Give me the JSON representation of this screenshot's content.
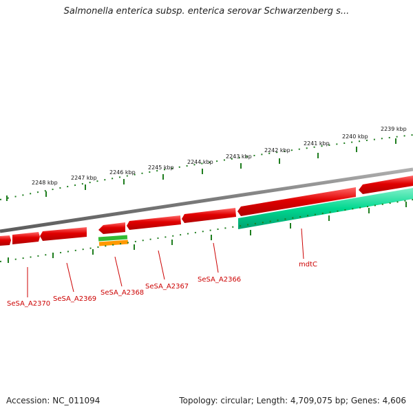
{
  "title": "Salmonella enterica subsp. enterica serovar Schwarzenberg s...",
  "footer": {
    "accession": "Accession: NC_011094",
    "summary": "Topology: circular; Length: 4,709,075 bp; Genes: 4,606"
  },
  "colors": {
    "forward_gene": "#e00000",
    "reverse_gene": "#00d890",
    "tick": "#1e7d1e",
    "backbone": "#8a8a8a",
    "label": "#cc0000",
    "feature_green": "#33bb33",
    "feature_orange": "#ff9900"
  },
  "scale": {
    "unit": "kbp",
    "labels": [
      "2248 kbp",
      "2247 kbp",
      "2246 kbp",
      "2245 kbp",
      "2244 kbp",
      "2243 kbp",
      "2242 kbp",
      "2241 kbp",
      "2240 kbp",
      "2239 kbp"
    ]
  },
  "genes": [
    {
      "label": "SeSA_A2370",
      "strand": "forward"
    },
    {
      "label": "SeSA_A2369",
      "strand": "forward"
    },
    {
      "label": "SeSA_A2368",
      "strand": "forward"
    },
    {
      "label": "SeSA_A2367",
      "strand": "forward"
    },
    {
      "label": "SeSA_A2366",
      "strand": "forward"
    },
    {
      "label": "mdtC",
      "strand": "reverse"
    }
  ]
}
